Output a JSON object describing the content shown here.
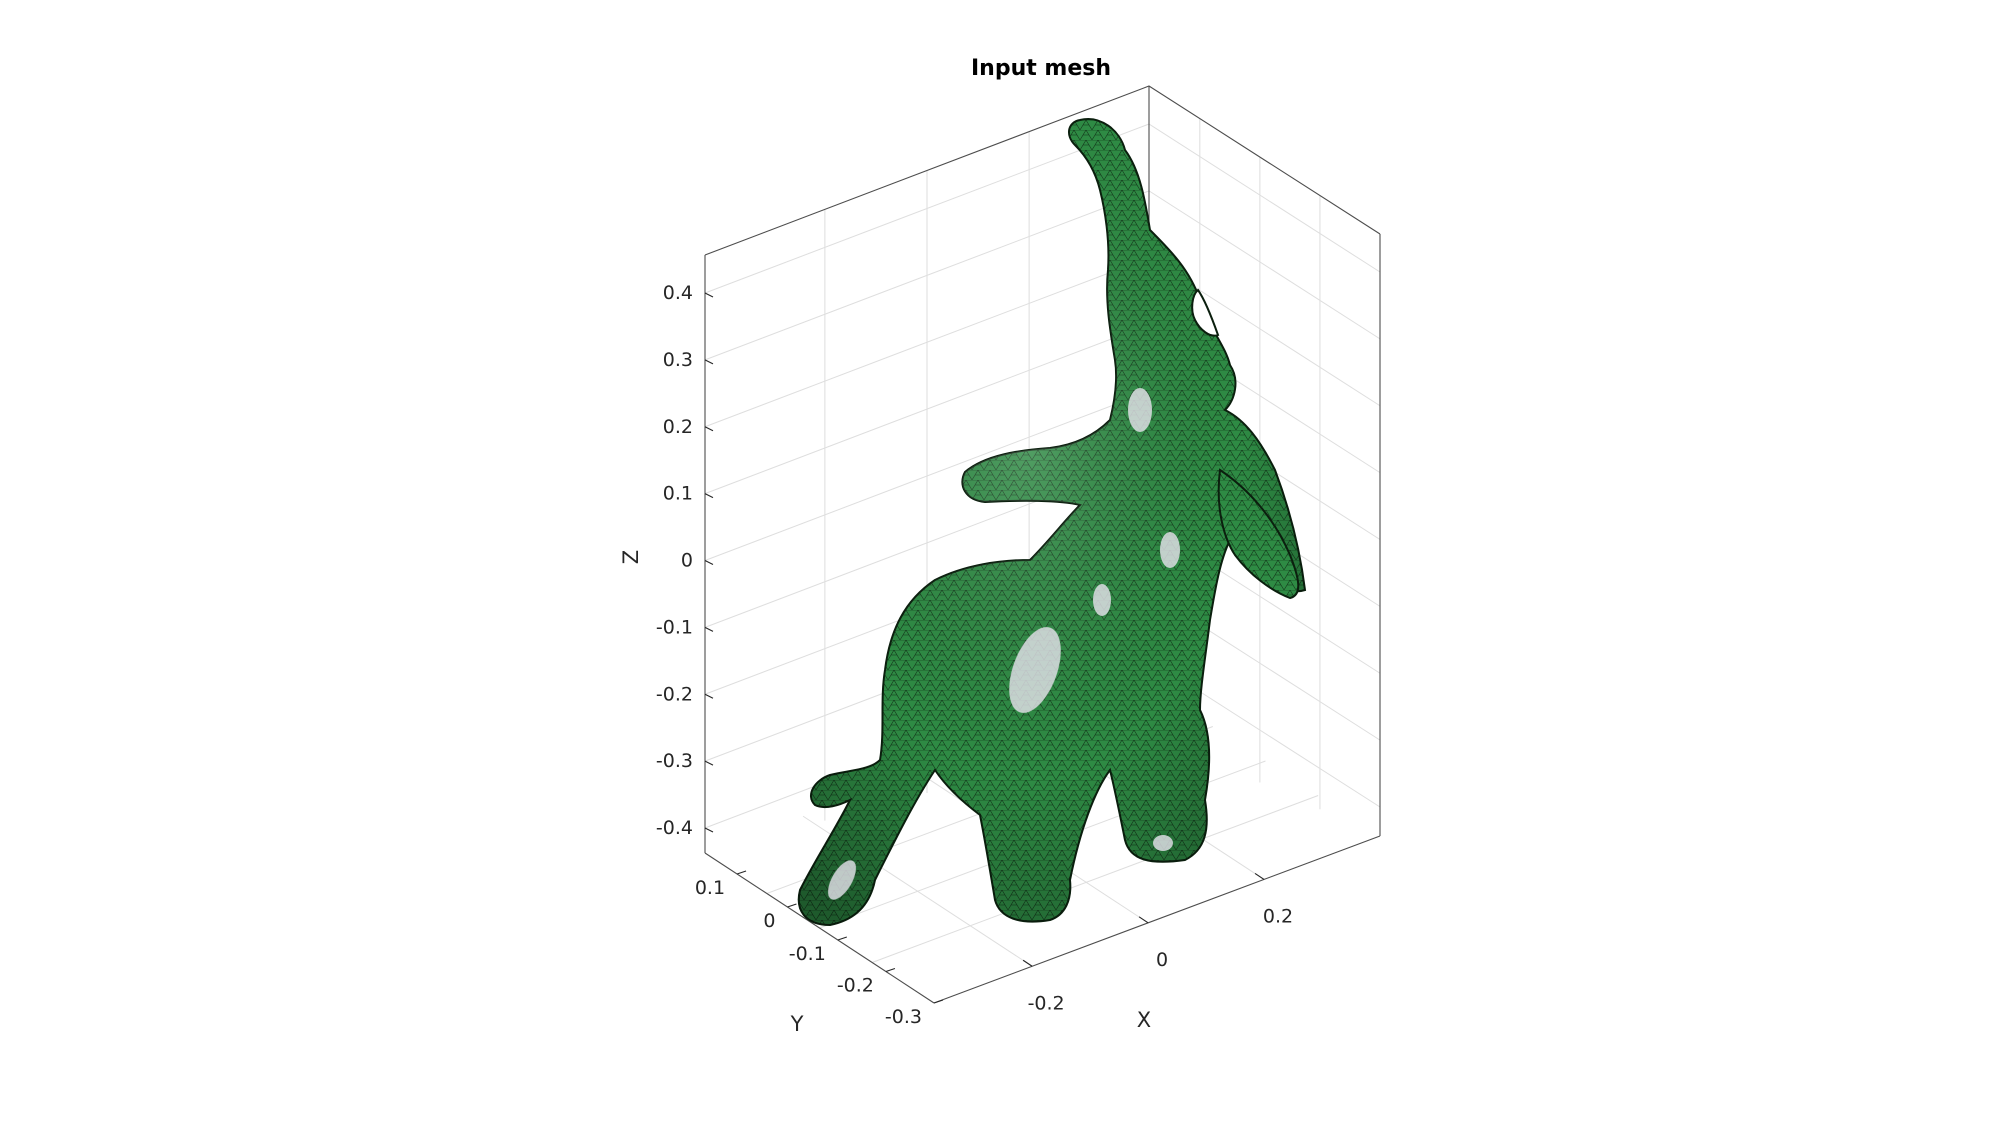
{
  "figure": {
    "title": "Input mesh"
  },
  "chart_data": {
    "type": "mesh3d",
    "title": "Input mesh",
    "xlabel": "X",
    "ylabel": "Y",
    "zlabel": "Z",
    "xticks": [
      -0.2,
      0,
      0.2
    ],
    "xtick_labels": [
      "-0.2",
      "0",
      "0.2"
    ],
    "yticks": [
      0.1,
      0,
      -0.1,
      -0.2,
      -0.3
    ],
    "ytick_labels": [
      "0.1",
      "0",
      "-0.1",
      "-0.2",
      "-0.3"
    ],
    "zticks": [
      0.4,
      0.3,
      0.2,
      0.1,
      0,
      -0.1,
      -0.2,
      -0.3,
      -0.4
    ],
    "ztick_labels": [
      "0.4",
      "0.3",
      "0.2",
      "0.1",
      "0",
      "-0.1",
      "-0.2",
      "-0.3",
      "-0.4"
    ],
    "grid": true,
    "box": true,
    "surface_color": "#2e8b44",
    "edge_color": "#0b1f0e",
    "highlight_color": "#e8e4ee",
    "subject": "elephant"
  }
}
